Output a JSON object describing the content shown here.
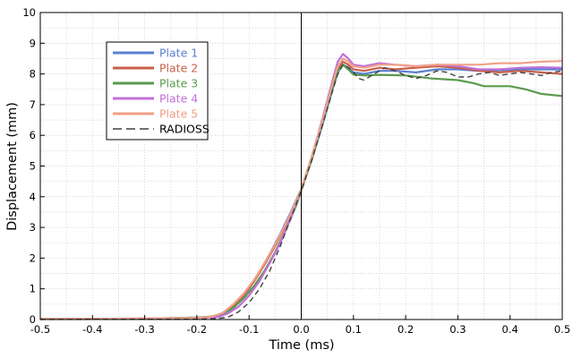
{
  "chart_data": {
    "type": "line",
    "title": "",
    "xlabel": "Time (ms)",
    "ylabel": "Displacement (mm)",
    "xlim": [
      -0.5,
      0.5
    ],
    "ylim": [
      0,
      10
    ],
    "xticks": [
      -0.5,
      -0.4,
      -0.3,
      -0.2,
      -0.1,
      0,
      0.1,
      0.2,
      0.3,
      0.4,
      0.5
    ],
    "yticks": [
      0,
      1,
      2,
      3,
      4,
      5,
      6,
      7,
      8,
      9,
      10
    ],
    "xtick_labels": [
      "-0.5",
      "-0.4",
      "-0.3",
      "-0.2",
      "-0.1",
      "0.0",
      "0.1",
      "0.2",
      "0.3",
      "0.4",
      "0.5"
    ],
    "ytick_labels": [
      "0",
      "1",
      "2",
      "3",
      "4",
      "5",
      "6",
      "7",
      "8",
      "9",
      "10"
    ],
    "grid": "minor-dotted",
    "vline_x": 0,
    "legend_position": "upper-left",
    "series": [
      {
        "name": "Plate 1",
        "color": "#5b7fd0",
        "dash": "solid",
        "points": [
          [
            -0.5,
            0.02
          ],
          [
            -0.3,
            0.03
          ],
          [
            -0.2,
            0.06
          ],
          [
            -0.18,
            0.08
          ],
          [
            -0.16,
            0.13
          ],
          [
            -0.14,
            0.3
          ],
          [
            -0.12,
            0.6
          ],
          [
            -0.1,
            1.0
          ],
          [
            -0.08,
            1.55
          ],
          [
            -0.06,
            2.15
          ],
          [
            -0.04,
            2.8
          ],
          [
            -0.02,
            3.5
          ],
          [
            0.0,
            4.25
          ],
          [
            0.02,
            5.2
          ],
          [
            0.04,
            6.3
          ],
          [
            0.06,
            7.5
          ],
          [
            0.07,
            8.05
          ],
          [
            0.08,
            8.3
          ],
          [
            0.09,
            8.2
          ],
          [
            0.1,
            8.05
          ],
          [
            0.12,
            8.0
          ],
          [
            0.15,
            8.1
          ],
          [
            0.18,
            8.1
          ],
          [
            0.22,
            8.05
          ],
          [
            0.26,
            8.15
          ],
          [
            0.3,
            8.15
          ],
          [
            0.34,
            8.1
          ],
          [
            0.38,
            8.12
          ],
          [
            0.42,
            8.15
          ],
          [
            0.46,
            8.15
          ],
          [
            0.5,
            8.15
          ]
        ]
      },
      {
        "name": "Plate 2",
        "color": "#c8604a",
        "dash": "solid",
        "points": [
          [
            -0.5,
            0.02
          ],
          [
            -0.3,
            0.03
          ],
          [
            -0.2,
            0.05
          ],
          [
            -0.17,
            0.1
          ],
          [
            -0.15,
            0.2
          ],
          [
            -0.13,
            0.45
          ],
          [
            -0.11,
            0.8
          ],
          [
            -0.09,
            1.25
          ],
          [
            -0.07,
            1.8
          ],
          [
            -0.05,
            2.4
          ],
          [
            -0.03,
            3.05
          ],
          [
            -0.01,
            3.8
          ],
          [
            0.0,
            4.2
          ],
          [
            0.02,
            5.25
          ],
          [
            0.04,
            6.4
          ],
          [
            0.06,
            7.6
          ],
          [
            0.07,
            8.15
          ],
          [
            0.08,
            8.4
          ],
          [
            0.09,
            8.3
          ],
          [
            0.1,
            8.15
          ],
          [
            0.12,
            8.1
          ],
          [
            0.15,
            8.2
          ],
          [
            0.18,
            8.15
          ],
          [
            0.22,
            8.2
          ],
          [
            0.26,
            8.25
          ],
          [
            0.3,
            8.2
          ],
          [
            0.34,
            8.1
          ],
          [
            0.38,
            8.05
          ],
          [
            0.42,
            8.1
          ],
          [
            0.46,
            8.05
          ],
          [
            0.5,
            8.0
          ]
        ]
      },
      {
        "name": "Plate 3",
        "color": "#5a9a4c",
        "dash": "solid",
        "points": [
          [
            -0.5,
            0.02
          ],
          [
            -0.3,
            0.03
          ],
          [
            -0.2,
            0.06
          ],
          [
            -0.17,
            0.1
          ],
          [
            -0.15,
            0.18
          ],
          [
            -0.13,
            0.38
          ],
          [
            -0.11,
            0.7
          ],
          [
            -0.09,
            1.1
          ],
          [
            -0.07,
            1.6
          ],
          [
            -0.05,
            2.2
          ],
          [
            -0.03,
            2.9
          ],
          [
            -0.01,
            3.7
          ],
          [
            0.0,
            4.2
          ],
          [
            0.02,
            5.2
          ],
          [
            0.04,
            6.35
          ],
          [
            0.06,
            7.55
          ],
          [
            0.07,
            8.1
          ],
          [
            0.08,
            8.3
          ],
          [
            0.09,
            8.15
          ],
          [
            0.1,
            7.98
          ],
          [
            0.12,
            7.95
          ],
          [
            0.15,
            7.97
          ],
          [
            0.2,
            7.95
          ],
          [
            0.25,
            7.85
          ],
          [
            0.3,
            7.8
          ],
          [
            0.33,
            7.7
          ],
          [
            0.35,
            7.6
          ],
          [
            0.4,
            7.6
          ],
          [
            0.43,
            7.5
          ],
          [
            0.46,
            7.35
          ],
          [
            0.5,
            7.28
          ]
        ]
      },
      {
        "name": "Plate 4",
        "color": "#c070d8",
        "dash": "solid",
        "points": [
          [
            -0.5,
            0.02
          ],
          [
            -0.3,
            0.03
          ],
          [
            -0.2,
            0.05
          ],
          [
            -0.16,
            0.08
          ],
          [
            -0.14,
            0.2
          ],
          [
            -0.12,
            0.42
          ],
          [
            -0.1,
            0.78
          ],
          [
            -0.08,
            1.25
          ],
          [
            -0.06,
            1.85
          ],
          [
            -0.04,
            2.5
          ],
          [
            -0.02,
            3.3
          ],
          [
            0.0,
            4.25
          ],
          [
            0.02,
            5.3
          ],
          [
            0.04,
            6.5
          ],
          [
            0.06,
            7.8
          ],
          [
            0.07,
            8.4
          ],
          [
            0.08,
            8.65
          ],
          [
            0.09,
            8.5
          ],
          [
            0.1,
            8.3
          ],
          [
            0.12,
            8.25
          ],
          [
            0.15,
            8.35
          ],
          [
            0.18,
            8.3
          ],
          [
            0.22,
            8.25
          ],
          [
            0.26,
            8.3
          ],
          [
            0.3,
            8.25
          ],
          [
            0.34,
            8.15
          ],
          [
            0.38,
            8.15
          ],
          [
            0.42,
            8.2
          ],
          [
            0.46,
            8.22
          ],
          [
            0.5,
            8.2
          ]
        ]
      },
      {
        "name": "Plate 5",
        "color": "#f0a088",
        "dash": "solid",
        "points": [
          [
            -0.5,
            0.02
          ],
          [
            -0.3,
            0.03
          ],
          [
            -0.2,
            0.05
          ],
          [
            -0.17,
            0.1
          ],
          [
            -0.15,
            0.22
          ],
          [
            -0.13,
            0.5
          ],
          [
            -0.11,
            0.85
          ],
          [
            -0.09,
            1.3
          ],
          [
            -0.07,
            1.85
          ],
          [
            -0.05,
            2.45
          ],
          [
            -0.03,
            3.1
          ],
          [
            -0.01,
            3.85
          ],
          [
            0.0,
            4.25
          ],
          [
            0.02,
            5.3
          ],
          [
            0.04,
            6.45
          ],
          [
            0.06,
            7.7
          ],
          [
            0.07,
            8.25
          ],
          [
            0.08,
            8.5
          ],
          [
            0.09,
            8.4
          ],
          [
            0.1,
            8.25
          ],
          [
            0.12,
            8.2
          ],
          [
            0.15,
            8.3
          ],
          [
            0.18,
            8.3
          ],
          [
            0.22,
            8.25
          ],
          [
            0.26,
            8.3
          ],
          [
            0.3,
            8.3
          ],
          [
            0.34,
            8.3
          ],
          [
            0.38,
            8.35
          ],
          [
            0.42,
            8.35
          ],
          [
            0.46,
            8.4
          ],
          [
            0.5,
            8.42
          ]
        ]
      },
      {
        "name": "RADIOSS",
        "color": "#404040",
        "dash": "dashed",
        "points": [
          [
            -0.5,
            0.0
          ],
          [
            -0.3,
            0.01
          ],
          [
            -0.2,
            0.01
          ],
          [
            -0.16,
            0.03
          ],
          [
            -0.14,
            0.08
          ],
          [
            -0.12,
            0.25
          ],
          [
            -0.1,
            0.55
          ],
          [
            -0.08,
            1.0
          ],
          [
            -0.06,
            1.6
          ],
          [
            -0.04,
            2.4
          ],
          [
            -0.02,
            3.3
          ],
          [
            0.0,
            4.2
          ],
          [
            0.02,
            5.2
          ],
          [
            0.04,
            6.3
          ],
          [
            0.06,
            7.45
          ],
          [
            0.07,
            8.0
          ],
          [
            0.08,
            8.3
          ],
          [
            0.09,
            8.22
          ],
          [
            0.1,
            8.05
          ],
          [
            0.11,
            7.85
          ],
          [
            0.12,
            7.8
          ],
          [
            0.14,
            8.0
          ],
          [
            0.16,
            8.2
          ],
          [
            0.18,
            8.1
          ],
          [
            0.2,
            7.95
          ],
          [
            0.22,
            7.85
          ],
          [
            0.24,
            7.95
          ],
          [
            0.26,
            8.1
          ],
          [
            0.28,
            8.05
          ],
          [
            0.3,
            7.9
          ],
          [
            0.32,
            7.9
          ],
          [
            0.34,
            8.0
          ],
          [
            0.36,
            8.05
          ],
          [
            0.38,
            7.95
          ],
          [
            0.4,
            8.0
          ],
          [
            0.42,
            8.05
          ],
          [
            0.44,
            8.0
          ],
          [
            0.46,
            7.95
          ],
          [
            0.48,
            8.05
          ],
          [
            0.5,
            8.1
          ]
        ]
      }
    ]
  }
}
